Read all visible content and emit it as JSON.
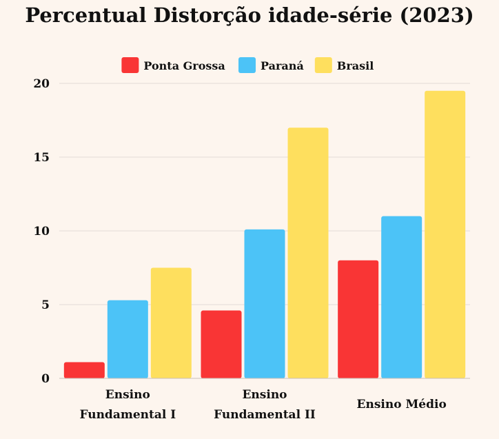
{
  "chart_data": {
    "type": "bar",
    "title": "Percentual Distorção idade-série (2023)",
    "xlabel": "",
    "ylabel": "",
    "ylim": [
      0,
      20
    ],
    "yticks": [
      "0",
      "5",
      "10",
      "15",
      "20"
    ],
    "grid": true,
    "legend_position": "top-center",
    "categories": [
      [
        "Ensino",
        "Fundamental I"
      ],
      [
        "Ensino",
        "Fundamental II"
      ],
      [
        "Ensino Médio"
      ]
    ],
    "series": [
      {
        "name": "Ponta Grossa",
        "color": "#f93535",
        "values": [
          1.1,
          4.6,
          8.0
        ]
      },
      {
        "name": "Paraná",
        "color": "#4cc3f7",
        "values": [
          5.3,
          10.1,
          11.0
        ]
      },
      {
        "name": "Brasil",
        "color": "#fedf5e",
        "values": [
          7.5,
          17.0,
          19.5
        ]
      }
    ]
  }
}
